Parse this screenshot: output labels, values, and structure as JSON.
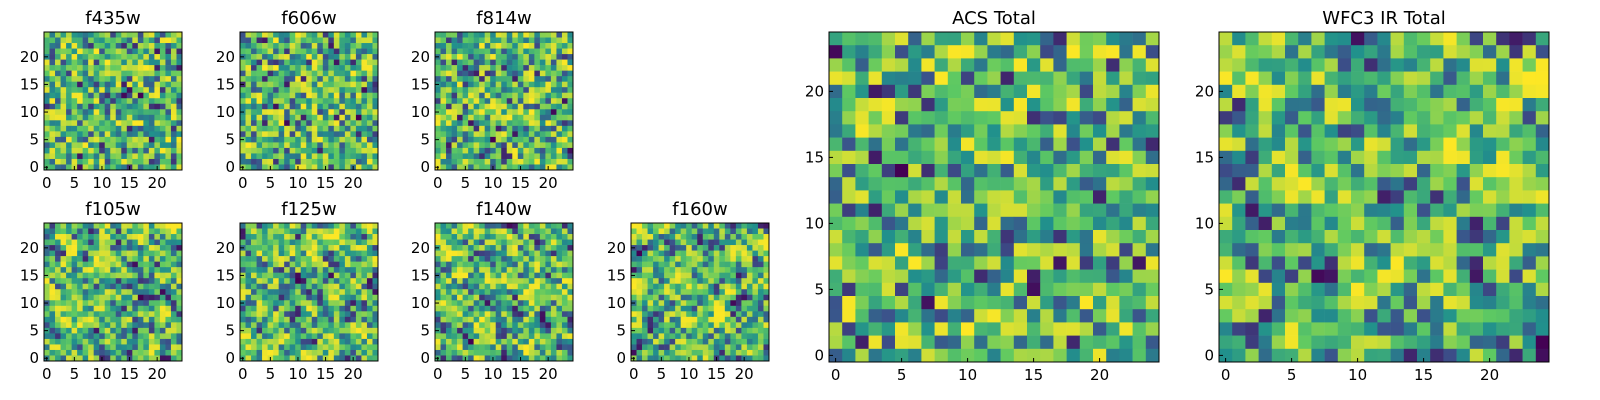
{
  "colormap": [
    "#440154",
    "#3b528b",
    "#21918c",
    "#5ec962",
    "#fde725"
  ],
  "chart_data": [
    {
      "type": "heatmap",
      "title": "f435w",
      "size": 25,
      "xlim": [
        0,
        24
      ],
      "ylim": [
        0,
        24
      ],
      "xticks": [
        "0",
        "5",
        "10",
        "15",
        "20"
      ],
      "yticks": [
        "0",
        "5",
        "10",
        "15",
        "20"
      ],
      "grid": false,
      "style": "noisy"
    },
    {
      "type": "heatmap",
      "title": "f606w",
      "size": 25,
      "xlim": [
        0,
        24
      ],
      "ylim": [
        0,
        24
      ],
      "xticks": [
        "0",
        "5",
        "10",
        "15",
        "20"
      ],
      "yticks": [
        "0",
        "5",
        "10",
        "15",
        "20"
      ],
      "grid": false,
      "style": "noisy"
    },
    {
      "type": "heatmap",
      "title": "f814w",
      "size": 25,
      "xlim": [
        0,
        24
      ],
      "ylim": [
        0,
        24
      ],
      "xticks": [
        "0",
        "5",
        "10",
        "15",
        "20"
      ],
      "yticks": [
        "0",
        "5",
        "10",
        "15",
        "20"
      ],
      "grid": false,
      "style": "noisy"
    },
    {
      "type": "heatmap",
      "title": "f105w",
      "size": 25,
      "xlim": [
        0,
        24
      ],
      "ylim": [
        0,
        24
      ],
      "xticks": [
        "0",
        "5",
        "10",
        "15",
        "20"
      ],
      "yticks": [
        "0",
        "5",
        "10",
        "15",
        "20"
      ],
      "grid": false,
      "style": "smooth"
    },
    {
      "type": "heatmap",
      "title": "f125w",
      "size": 25,
      "xlim": [
        0,
        24
      ],
      "ylim": [
        0,
        24
      ],
      "xticks": [
        "0",
        "5",
        "10",
        "15",
        "20"
      ],
      "yticks": [
        "0",
        "5",
        "10",
        "15",
        "20"
      ],
      "grid": false,
      "style": "smooth"
    },
    {
      "type": "heatmap",
      "title": "f140w",
      "size": 25,
      "xlim": [
        0,
        24
      ],
      "ylim": [
        0,
        24
      ],
      "xticks": [
        "0",
        "5",
        "10",
        "15",
        "20"
      ],
      "yticks": [
        "0",
        "5",
        "10",
        "15",
        "20"
      ],
      "grid": false,
      "style": "smooth"
    },
    {
      "type": "heatmap",
      "title": "f160w",
      "size": 25,
      "xlim": [
        0,
        24
      ],
      "ylim": [
        0,
        24
      ],
      "xticks": [
        "0",
        "5",
        "10",
        "15",
        "20"
      ],
      "yticks": [
        "0",
        "5",
        "10",
        "15",
        "20"
      ],
      "grid": false,
      "style": "smooth"
    },
    {
      "type": "heatmap",
      "title": "ACS Total",
      "size": 25,
      "xlim": [
        0,
        24
      ],
      "ylim": [
        0,
        24
      ],
      "xticks": [
        "0",
        "5",
        "10",
        "15",
        "20"
      ],
      "yticks": [
        "0",
        "5",
        "10",
        "15",
        "20"
      ],
      "grid": false,
      "style": "noisy"
    },
    {
      "type": "heatmap",
      "title": "WFC3 IR Total",
      "size": 25,
      "xlim": [
        0,
        24
      ],
      "ylim": [
        0,
        24
      ],
      "xticks": [
        "0",
        "5",
        "10",
        "15",
        "20"
      ],
      "yticks": [
        "0",
        "5",
        "10",
        "15",
        "20"
      ],
      "grid": false,
      "style": "smooth"
    }
  ]
}
